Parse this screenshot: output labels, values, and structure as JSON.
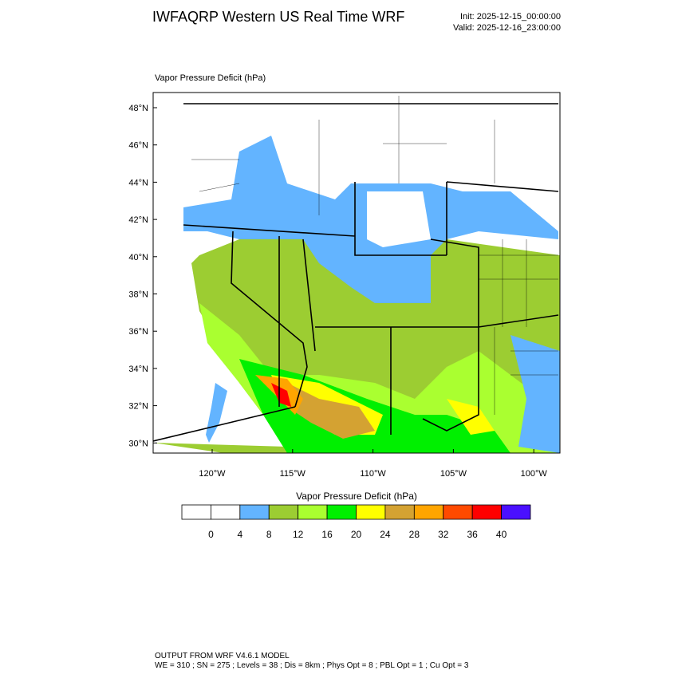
{
  "header": {
    "title": "IWFAQRP Western US Real Time WRF",
    "init": "Init: 2025-12-15_00:00:00",
    "valid": "Valid: 2025-12-16_23:00:00"
  },
  "map": {
    "label": "Vapor Pressure Deficit   (hPa)",
    "lat_ticks": [
      "48°N",
      "46°N",
      "44°N",
      "42°N",
      "40°N",
      "38°N",
      "36°N",
      "34°N",
      "32°N",
      "30°N"
    ],
    "lon_ticks": [
      "120°W",
      "115°W",
      "110°W",
      "105°W",
      "100°W"
    ]
  },
  "colorbar": {
    "title": "Vapor Pressure Deficit  (hPa)",
    "colors": [
      "#ffffff",
      "#ffffff",
      "#63b4ff",
      "#9ccd32",
      "#aaff30",
      "#00f000",
      "#ffff00",
      "#d4a232",
      "#ffa500",
      "#ff4a00",
      "#ff0000",
      "#4a10ff"
    ],
    "levels": [
      "0",
      "4",
      "8",
      "12",
      "16",
      "20",
      "24",
      "28",
      "32",
      "36",
      "40"
    ]
  },
  "footer": {
    "line1": "OUTPUT FROM WRF V4.6.1 MODEL",
    "line2": "WE = 310 ; SN = 275 ; Levels = 38 ; Dis = 8km ; Phys Opt = 8 ; PBL Opt = 1 ; Cu Opt = 3"
  }
}
